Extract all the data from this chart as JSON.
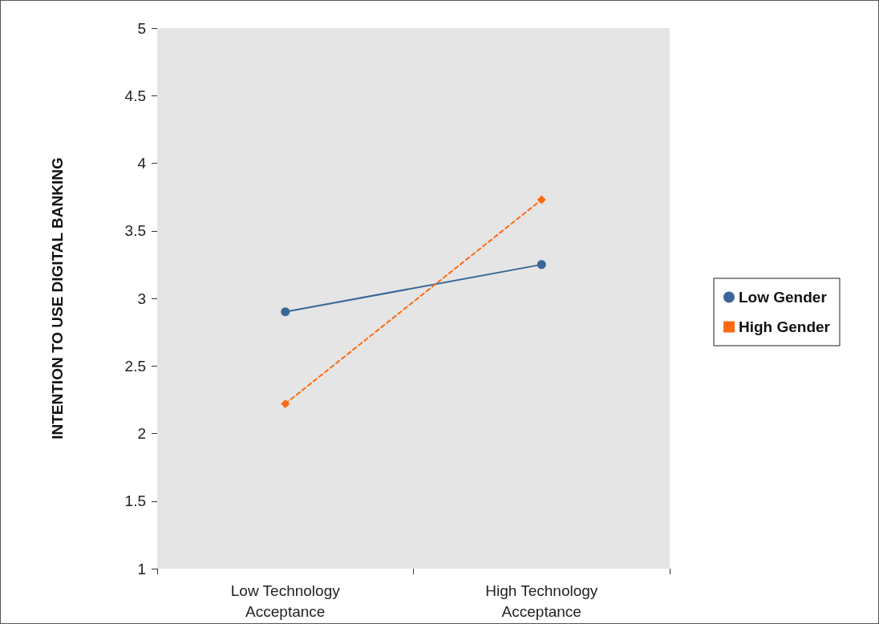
{
  "chart_data": {
    "type": "line",
    "ylabel": "INTENTION TO USE DIGITAL BANKING",
    "categories": [
      "Low Technology\nAcceptance",
      "High Technology\nAcceptance"
    ],
    "series": [
      {
        "name": "Low Gender",
        "color": "#3a6699",
        "values": [
          2.9,
          3.25
        ],
        "marker": "circle",
        "line_style": "solid"
      },
      {
        "name": "High Gender",
        "color": "#ff6a10",
        "values": [
          2.22,
          3.73
        ],
        "marker": "diamond",
        "line_style": "dashed"
      }
    ],
    "ylim": [
      1,
      5
    ],
    "yticks": [
      1,
      1.5,
      2,
      2.5,
      3,
      3.5,
      4,
      4.5,
      5
    ],
    "grid": false,
    "legend": "right"
  }
}
